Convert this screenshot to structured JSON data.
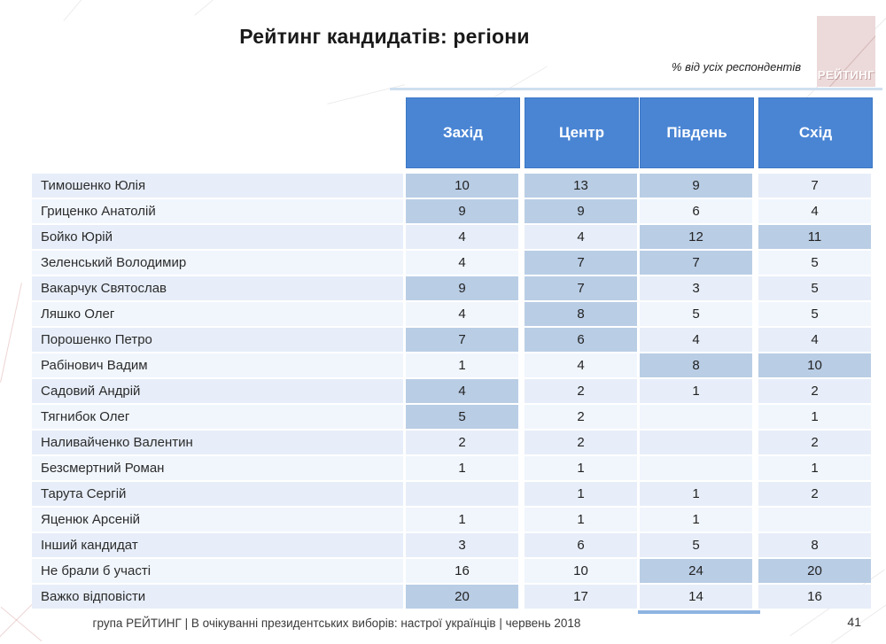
{
  "slide": {
    "title": "Рейтинг кандидатів: регіони",
    "subtitle": "% від усіх респондентів",
    "logo_text": "РЕЙТИНГ",
    "footer": "група РЕЙТИНГ  | В очікуванні президентських виборів: настрої українців |  червень 2018",
    "page_number": "41"
  },
  "colors": {
    "header_blue": "#4a85d4",
    "header_border": "#3d78c6",
    "highlight_cell": "#b9cde5",
    "row_odd": "#e7eef9",
    "row_even": "#f1f6fd",
    "logo_pink": "#ecd9d9"
  },
  "chart_data": {
    "type": "table",
    "title": "Рейтинг кандидатів: регіони",
    "unit_note": "% від усіх респондентів",
    "columns": [
      "Захід",
      "Центр",
      "Південь",
      "Схід"
    ],
    "rows": [
      {
        "label": "Тимошенко Юлія",
        "values": [
          "10",
          "13",
          "9",
          "7"
        ],
        "highlight": [
          true,
          true,
          true,
          false
        ]
      },
      {
        "label": "Гриценко Анатолій",
        "values": [
          "9",
          "9",
          "6",
          "4"
        ],
        "highlight": [
          true,
          true,
          false,
          false
        ]
      },
      {
        "label": "Бойко Юрій",
        "values": [
          "4",
          "4",
          "12",
          "11"
        ],
        "highlight": [
          false,
          false,
          true,
          true
        ]
      },
      {
        "label": "Зеленський Володимир",
        "values": [
          "4",
          "7",
          "7",
          "5"
        ],
        "highlight": [
          false,
          true,
          true,
          false
        ]
      },
      {
        "label": "Вакарчук Святослав",
        "values": [
          "9",
          "7",
          "3",
          "5"
        ],
        "highlight": [
          true,
          true,
          false,
          false
        ]
      },
      {
        "label": "Ляшко Олег",
        "values": [
          "4",
          "8",
          "5",
          "5"
        ],
        "highlight": [
          false,
          true,
          false,
          false
        ]
      },
      {
        "label": "Порошенко Петро",
        "values": [
          "7",
          "6",
          "4",
          "4"
        ],
        "highlight": [
          true,
          true,
          false,
          false
        ]
      },
      {
        "label": "Рабінович Вадим",
        "values": [
          "1",
          "4",
          "8",
          "10"
        ],
        "highlight": [
          false,
          false,
          true,
          true
        ]
      },
      {
        "label": "Садовий Андрій",
        "values": [
          "4",
          "2",
          "1",
          "2"
        ],
        "highlight": [
          true,
          false,
          false,
          false
        ]
      },
      {
        "label": "Тягнибок Олег",
        "values": [
          "5",
          "2",
          "",
          "1"
        ],
        "highlight": [
          true,
          false,
          false,
          false
        ]
      },
      {
        "label": "Наливайченко Валентин",
        "values": [
          "2",
          "2",
          "",
          "2"
        ],
        "highlight": [
          false,
          false,
          false,
          false
        ]
      },
      {
        "label": "Безсмертний Роман",
        "values": [
          "1",
          "1",
          "",
          "1"
        ],
        "highlight": [
          false,
          false,
          false,
          false
        ]
      },
      {
        "label": "Тарута Сергій",
        "values": [
          "",
          "1",
          "1",
          "2"
        ],
        "highlight": [
          false,
          false,
          false,
          false
        ]
      },
      {
        "label": "Яценюк Арсеній",
        "values": [
          "1",
          "1",
          "1",
          ""
        ],
        "highlight": [
          false,
          false,
          false,
          false
        ]
      },
      {
        "label": "Інший кандидат",
        "values": [
          "3",
          "6",
          "5",
          "8"
        ],
        "highlight": [
          false,
          false,
          false,
          false
        ]
      },
      {
        "label": "Не брали б участі",
        "values": [
          "16",
          "10",
          "24",
          "20"
        ],
        "highlight": [
          false,
          false,
          true,
          true
        ]
      },
      {
        "label": "Важко відповісти",
        "values": [
          "20",
          "17",
          "14",
          "16"
        ],
        "highlight": [
          true,
          false,
          false,
          false
        ]
      }
    ]
  }
}
